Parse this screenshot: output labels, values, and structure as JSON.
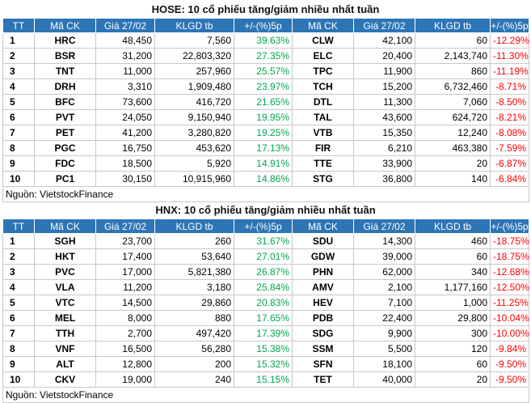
{
  "hose": {
    "title": "HOSE: 10 cổ phiếu tăng/giảm nhiều nhất tuần",
    "headers": [
      "TT",
      "Mã CK",
      "Giá 27/02",
      "KLGD tb",
      "+/-(%)5p",
      "Mã CK",
      "Giá 27/02",
      "KLGD tb",
      "+/-(%)5p"
    ],
    "rows": [
      [
        "1",
        "HRC",
        "48,450",
        "7,560",
        "39.63%",
        "CLW",
        "42,100",
        "60",
        "-12.29%"
      ],
      [
        "2",
        "BSR",
        "31,200",
        "22,803,320",
        "27.35%",
        "ELC",
        "20,400",
        "2,143,740",
        "-11.30%"
      ],
      [
        "3",
        "TNT",
        "11,000",
        "257,960",
        "25.57%",
        "TPC",
        "11,900",
        "860",
        "-11.19%"
      ],
      [
        "4",
        "DRH",
        "3,310",
        "1,909,480",
        "23.97%",
        "TCH",
        "15,200",
        "6,732,460",
        "-8.71%"
      ],
      [
        "5",
        "BFC",
        "73,600",
        "416,720",
        "21.65%",
        "DTL",
        "11,300",
        "7,060",
        "-8.50%"
      ],
      [
        "6",
        "PVT",
        "24,050",
        "9,150,940",
        "19.95%",
        "TAL",
        "43,600",
        "624,720",
        "-8.21%"
      ],
      [
        "7",
        "PET",
        "41,200",
        "3,280,820",
        "19.25%",
        "VTB",
        "15,350",
        "12,240",
        "-8.08%"
      ],
      [
        "8",
        "PGC",
        "16,750",
        "453,620",
        "17.13%",
        "FIR",
        "6,210",
        "463,380",
        "-7.59%"
      ],
      [
        "9",
        "FDC",
        "18,500",
        "5,920",
        "14.91%",
        "TTE",
        "33,900",
        "20",
        "-6.87%"
      ],
      [
        "10",
        "PC1",
        "30,150",
        "10,915,960",
        "14.86%",
        "STG",
        "36,800",
        "140",
        "-6.84%"
      ]
    ],
    "source": "Nguồn: VietstockFinance"
  },
  "hnx": {
    "title": "HNX: 10 cổ phiếu tăng/giảm nhiều nhất tuần",
    "headers": [
      "TT",
      "Mã CK",
      "Giá 27/02",
      "KLGD tb",
      "+/-(%)5p",
      "Mã CK",
      "Giá 27/02",
      "KLGD tb",
      "+/-(%)5p"
    ],
    "rows": [
      [
        "1",
        "SGH",
        "23,700",
        "260",
        "31.67%",
        "SDU",
        "14,300",
        "460",
        "-18.75%"
      ],
      [
        "2",
        "HKT",
        "17,400",
        "53,640",
        "27.01%",
        "GDW",
        "39,000",
        "60",
        "-18.75%"
      ],
      [
        "3",
        "PVC",
        "17,000",
        "5,821,380",
        "26.87%",
        "PHN",
        "62,000",
        "340",
        "-12.68%"
      ],
      [
        "4",
        "VLA",
        "11,200",
        "3,180",
        "25.84%",
        "AMV",
        "2,100",
        "1,177,160",
        "-12.50%"
      ],
      [
        "5",
        "VTC",
        "14,500",
        "29,860",
        "20.83%",
        "HEV",
        "7,100",
        "1,000",
        "-11.25%"
      ],
      [
        "6",
        "MEL",
        "8,000",
        "880",
        "17.65%",
        "PDB",
        "22,400",
        "29,800",
        "-10.04%"
      ],
      [
        "7",
        "TTH",
        "2,700",
        "497,420",
        "17.39%",
        "SDG",
        "9,900",
        "300",
        "-10.00%"
      ],
      [
        "8",
        "VNF",
        "16,500",
        "56,280",
        "15.38%",
        "SSM",
        "5,500",
        "120",
        "-9.84%"
      ],
      [
        "9",
        "ALT",
        "12,800",
        "200",
        "15.32%",
        "SFN",
        "18,100",
        "60",
        "-9.50%"
      ],
      [
        "10",
        "CKV",
        "19,000",
        "240",
        "15.15%",
        "TET",
        "40,000",
        "20",
        "-9.50%"
      ]
    ],
    "source": "Nguồn: VietstockFinance"
  },
  "colors": {
    "header_bg": "#2e75b6",
    "gain": "#00a651",
    "loss": "#ff0000"
  }
}
